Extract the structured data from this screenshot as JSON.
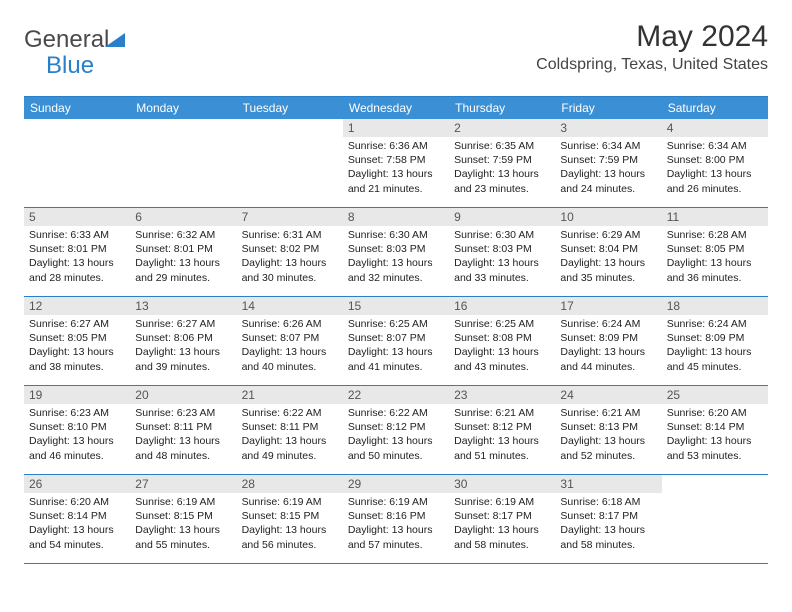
{
  "logo": {
    "text1": "General",
    "text2": "Blue",
    "tri_color": "#2a7fc9"
  },
  "title": "May 2024",
  "location": "Coldspring, Texas, United States",
  "colors": {
    "header_bg": "#3b8fd4",
    "rule": "#2a7fc9",
    "daynum_bg": "#e8e8e8"
  },
  "weekdays": [
    "Sunday",
    "Monday",
    "Tuesday",
    "Wednesday",
    "Thursday",
    "Friday",
    "Saturday"
  ],
  "weeks": [
    [
      {
        "n": "",
        "sr": "",
        "ss": "",
        "dl": ""
      },
      {
        "n": "",
        "sr": "",
        "ss": "",
        "dl": ""
      },
      {
        "n": "",
        "sr": "",
        "ss": "",
        "dl": ""
      },
      {
        "n": "1",
        "sr": "Sunrise: 6:36 AM",
        "ss": "Sunset: 7:58 PM",
        "dl": "Daylight: 13 hours and 21 minutes."
      },
      {
        "n": "2",
        "sr": "Sunrise: 6:35 AM",
        "ss": "Sunset: 7:59 PM",
        "dl": "Daylight: 13 hours and 23 minutes."
      },
      {
        "n": "3",
        "sr": "Sunrise: 6:34 AM",
        "ss": "Sunset: 7:59 PM",
        "dl": "Daylight: 13 hours and 24 minutes."
      },
      {
        "n": "4",
        "sr": "Sunrise: 6:34 AM",
        "ss": "Sunset: 8:00 PM",
        "dl": "Daylight: 13 hours and 26 minutes."
      }
    ],
    [
      {
        "n": "5",
        "sr": "Sunrise: 6:33 AM",
        "ss": "Sunset: 8:01 PM",
        "dl": "Daylight: 13 hours and 28 minutes."
      },
      {
        "n": "6",
        "sr": "Sunrise: 6:32 AM",
        "ss": "Sunset: 8:01 PM",
        "dl": "Daylight: 13 hours and 29 minutes."
      },
      {
        "n": "7",
        "sr": "Sunrise: 6:31 AM",
        "ss": "Sunset: 8:02 PM",
        "dl": "Daylight: 13 hours and 30 minutes."
      },
      {
        "n": "8",
        "sr": "Sunrise: 6:30 AM",
        "ss": "Sunset: 8:03 PM",
        "dl": "Daylight: 13 hours and 32 minutes."
      },
      {
        "n": "9",
        "sr": "Sunrise: 6:30 AM",
        "ss": "Sunset: 8:03 PM",
        "dl": "Daylight: 13 hours and 33 minutes."
      },
      {
        "n": "10",
        "sr": "Sunrise: 6:29 AM",
        "ss": "Sunset: 8:04 PM",
        "dl": "Daylight: 13 hours and 35 minutes."
      },
      {
        "n": "11",
        "sr": "Sunrise: 6:28 AM",
        "ss": "Sunset: 8:05 PM",
        "dl": "Daylight: 13 hours and 36 minutes."
      }
    ],
    [
      {
        "n": "12",
        "sr": "Sunrise: 6:27 AM",
        "ss": "Sunset: 8:05 PM",
        "dl": "Daylight: 13 hours and 38 minutes."
      },
      {
        "n": "13",
        "sr": "Sunrise: 6:27 AM",
        "ss": "Sunset: 8:06 PM",
        "dl": "Daylight: 13 hours and 39 minutes."
      },
      {
        "n": "14",
        "sr": "Sunrise: 6:26 AM",
        "ss": "Sunset: 8:07 PM",
        "dl": "Daylight: 13 hours and 40 minutes."
      },
      {
        "n": "15",
        "sr": "Sunrise: 6:25 AM",
        "ss": "Sunset: 8:07 PM",
        "dl": "Daylight: 13 hours and 41 minutes."
      },
      {
        "n": "16",
        "sr": "Sunrise: 6:25 AM",
        "ss": "Sunset: 8:08 PM",
        "dl": "Daylight: 13 hours and 43 minutes."
      },
      {
        "n": "17",
        "sr": "Sunrise: 6:24 AM",
        "ss": "Sunset: 8:09 PM",
        "dl": "Daylight: 13 hours and 44 minutes."
      },
      {
        "n": "18",
        "sr": "Sunrise: 6:24 AM",
        "ss": "Sunset: 8:09 PM",
        "dl": "Daylight: 13 hours and 45 minutes."
      }
    ],
    [
      {
        "n": "19",
        "sr": "Sunrise: 6:23 AM",
        "ss": "Sunset: 8:10 PM",
        "dl": "Daylight: 13 hours and 46 minutes."
      },
      {
        "n": "20",
        "sr": "Sunrise: 6:23 AM",
        "ss": "Sunset: 8:11 PM",
        "dl": "Daylight: 13 hours and 48 minutes."
      },
      {
        "n": "21",
        "sr": "Sunrise: 6:22 AM",
        "ss": "Sunset: 8:11 PM",
        "dl": "Daylight: 13 hours and 49 minutes."
      },
      {
        "n": "22",
        "sr": "Sunrise: 6:22 AM",
        "ss": "Sunset: 8:12 PM",
        "dl": "Daylight: 13 hours and 50 minutes."
      },
      {
        "n": "23",
        "sr": "Sunrise: 6:21 AM",
        "ss": "Sunset: 8:12 PM",
        "dl": "Daylight: 13 hours and 51 minutes."
      },
      {
        "n": "24",
        "sr": "Sunrise: 6:21 AM",
        "ss": "Sunset: 8:13 PM",
        "dl": "Daylight: 13 hours and 52 minutes."
      },
      {
        "n": "25",
        "sr": "Sunrise: 6:20 AM",
        "ss": "Sunset: 8:14 PM",
        "dl": "Daylight: 13 hours and 53 minutes."
      }
    ],
    [
      {
        "n": "26",
        "sr": "Sunrise: 6:20 AM",
        "ss": "Sunset: 8:14 PM",
        "dl": "Daylight: 13 hours and 54 minutes."
      },
      {
        "n": "27",
        "sr": "Sunrise: 6:19 AM",
        "ss": "Sunset: 8:15 PM",
        "dl": "Daylight: 13 hours and 55 minutes."
      },
      {
        "n": "28",
        "sr": "Sunrise: 6:19 AM",
        "ss": "Sunset: 8:15 PM",
        "dl": "Daylight: 13 hours and 56 minutes."
      },
      {
        "n": "29",
        "sr": "Sunrise: 6:19 AM",
        "ss": "Sunset: 8:16 PM",
        "dl": "Daylight: 13 hours and 57 minutes."
      },
      {
        "n": "30",
        "sr": "Sunrise: 6:19 AM",
        "ss": "Sunset: 8:17 PM",
        "dl": "Daylight: 13 hours and 58 minutes."
      },
      {
        "n": "31",
        "sr": "Sunrise: 6:18 AM",
        "ss": "Sunset: 8:17 PM",
        "dl": "Daylight: 13 hours and 58 minutes."
      },
      {
        "n": "",
        "sr": "",
        "ss": "",
        "dl": ""
      }
    ]
  ]
}
